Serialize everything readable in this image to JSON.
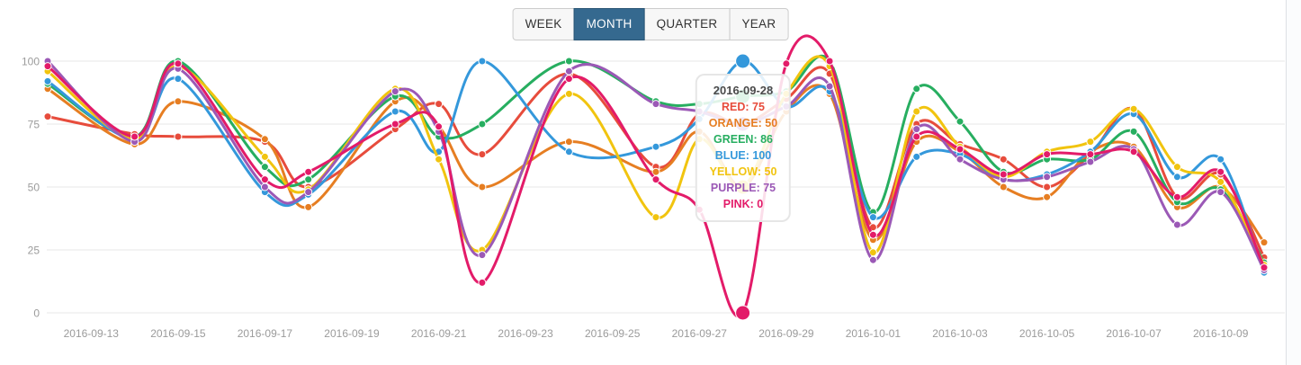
{
  "ui": {
    "background_color": "#ffffff",
    "accent_color": "#35698f",
    "accent_border_color": "#2a5675",
    "tab_bg_color": "#f7f7f7",
    "tab_border_color": "#cccccc",
    "tab_text_color": "#333333",
    "grid_color": "#e7e7e7",
    "axis_text_color": "#9b9b9b",
    "tooltip_title_color": "#4a4a4a"
  },
  "controls": {
    "tabs": [
      {
        "label": "WEEK",
        "active": false
      },
      {
        "label": "MONTH",
        "active": true
      },
      {
        "label": "QUARTER",
        "active": false
      },
      {
        "label": "YEAR",
        "active": false
      }
    ]
  },
  "tooltip": {
    "title": "2016-09-28",
    "rows": [
      {
        "label": "RED",
        "value": 75
      },
      {
        "label": "ORANGE",
        "value": 50
      },
      {
        "label": "GREEN",
        "value": 86
      },
      {
        "label": "BLUE",
        "value": 100
      },
      {
        "label": "YELLOW",
        "value": 50
      },
      {
        "label": "PURPLE",
        "value": 75
      },
      {
        "label": "PINK",
        "value": 0
      }
    ]
  },
  "chart_data": {
    "type": "line",
    "curve": "smooth",
    "x": [
      "2016-09-12",
      "2016-09-14",
      "2016-09-15",
      "2016-09-17",
      "2016-09-18",
      "2016-09-20",
      "2016-09-21",
      "2016-09-22",
      "2016-09-24",
      "2016-09-26",
      "2016-09-27",
      "2016-09-28",
      "2016-09-29",
      "2016-09-30",
      "2016-10-01",
      "2016-10-02",
      "2016-10-03",
      "2016-10-04",
      "2016-10-05",
      "2016-10-06",
      "2016-10-07",
      "2016-10-08",
      "2016-10-09",
      "2016-10-10"
    ],
    "hover_index": 11,
    "series": [
      {
        "name": "RED",
        "color": "#e74c3c",
        "values": [
          78,
          71,
          70,
          68,
          50,
          73,
          83,
          63,
          95,
          58,
          79,
          75,
          85,
          95,
          34,
          75,
          67,
          61,
          50,
          63,
          81,
          46,
          55,
          22
        ]
      },
      {
        "name": "ORANGE",
        "color": "#e67e22",
        "values": [
          89,
          67,
          84,
          69,
          42,
          84,
          74,
          50,
          68,
          56,
          72,
          50,
          80,
          87,
          29,
          68,
          64,
          50,
          46,
          64,
          66,
          42,
          50,
          28
        ]
      },
      {
        "name": "GREEN",
        "color": "#27ae60",
        "values": [
          91,
          70,
          100,
          58,
          53,
          86,
          70,
          75,
          100,
          84,
          83,
          86,
          88,
          100,
          40,
          89,
          76,
          56,
          61,
          61,
          72,
          44,
          49,
          20
        ]
      },
      {
        "name": "BLUE",
        "color": "#3498db",
        "values": [
          92,
          69,
          93,
          48,
          47,
          80,
          64,
          100,
          64,
          66,
          77,
          100,
          82,
          88,
          38,
          62,
          63,
          53,
          55,
          64,
          79,
          54,
          61,
          16
        ]
      },
      {
        "name": "YELLOW",
        "color": "#f1c40f",
        "values": [
          96,
          69,
          98,
          62,
          49,
          89,
          61,
          25,
          87,
          38,
          69,
          50,
          87,
          98,
          24,
          80,
          66,
          54,
          64,
          68,
          81,
          58,
          52,
          19
        ]
      },
      {
        "name": "PURPLE",
        "color": "#9b59b6",
        "values": [
          100,
          68,
          97,
          50,
          48,
          88,
          72,
          23,
          96,
          83,
          80,
          75,
          82,
          90,
          21,
          73,
          61,
          53,
          54,
          60,
          65,
          35,
          48,
          17
        ]
      },
      {
        "name": "PINK",
        "color": "#e31b69",
        "values": [
          98,
          70,
          99,
          53,
          56,
          75,
          74,
          12,
          93,
          53,
          41,
          0,
          99,
          100,
          31,
          70,
          65,
          55,
          63,
          63,
          64,
          46,
          56,
          18
        ]
      }
    ],
    "ylim": [
      0,
      100
    ],
    "yticks": [
      0,
      25,
      50,
      75,
      100
    ],
    "xtick_labels": [
      "2016-09-13",
      "2016-09-15",
      "2016-09-17",
      "2016-09-19",
      "2016-09-21",
      "2016-09-23",
      "2016-09-25",
      "2016-09-27",
      "2016-09-29",
      "2016-10-01",
      "2016-10-03",
      "2016-10-05",
      "2016-10-07",
      "2016-10-09"
    ],
    "grid": true,
    "legend_position": "hover-tooltip"
  }
}
